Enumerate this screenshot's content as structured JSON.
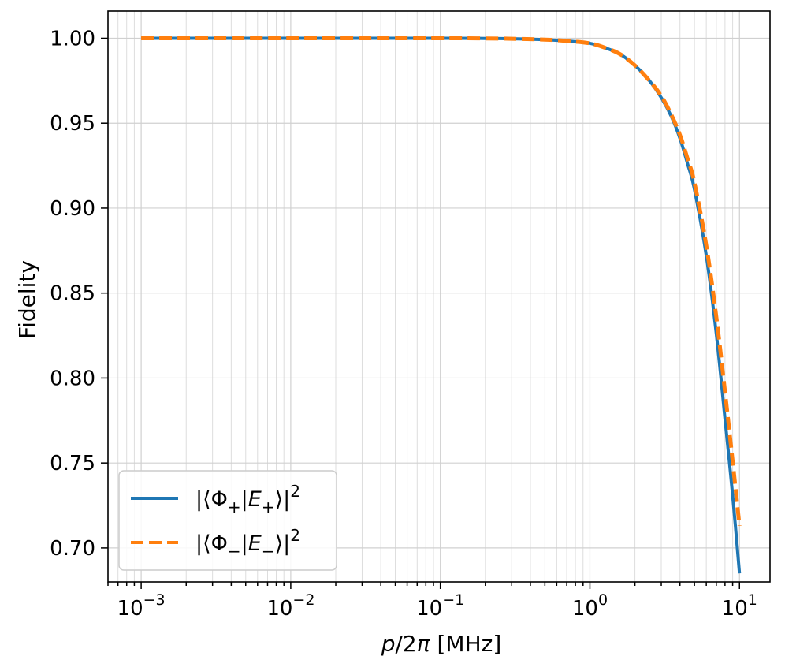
{
  "chart_data": {
    "type": "line",
    "xlabel_parts": {
      "var": "p",
      "rest": "/2",
      "pi": "π",
      "unit": " [MHz]"
    },
    "ylabel": "Fidelity",
    "xscale": "log",
    "xlim": [
      0.0006,
      16
    ],
    "ylim": [
      0.68,
      1.016
    ],
    "grid": true,
    "grid_minor_x": true,
    "legend_location": "lower-left",
    "xticks": [
      {
        "value": 0.001,
        "base": "10",
        "exp": "−3"
      },
      {
        "value": 0.01,
        "base": "10",
        "exp": "−2"
      },
      {
        "value": 0.1,
        "base": "10",
        "exp": "−1"
      },
      {
        "value": 1,
        "base": "10",
        "exp": "0"
      },
      {
        "value": 10,
        "base": "10",
        "exp": "1"
      }
    ],
    "yticks": [
      {
        "value": 1.0,
        "label": "1.00"
      },
      {
        "value": 0.95,
        "label": "0.95"
      },
      {
        "value": 0.9,
        "label": "0.90"
      },
      {
        "value": 0.85,
        "label": "0.85"
      },
      {
        "value": 0.8,
        "label": "0.80"
      },
      {
        "value": 0.75,
        "label": "0.75"
      },
      {
        "value": 0.7,
        "label": "0.70"
      }
    ],
    "series": [
      {
        "name": "|⟨Φ+|E+⟩|²",
        "label_parts": {
          "open": "|⟨Φ",
          "sub1": "+",
          "mid": "|E",
          "sub2": "+",
          "close": "⟩|",
          "sup": "2"
        },
        "color": "#1f77b4",
        "style": "solid",
        "x": [
          0.001,
          0.01,
          0.1,
          0.2,
          0.3,
          0.5,
          0.7,
          1.0,
          1.3,
          1.6,
          2.0,
          2.5,
          3.0,
          3.5,
          4.0,
          4.5,
          5.0,
          6.0,
          7.0,
          8.0,
          9.0,
          10.0
        ],
        "y": [
          1.0,
          1.0,
          1.0,
          0.9999,
          0.9997,
          0.9992,
          0.9984,
          0.997,
          0.994,
          0.9905,
          0.984,
          0.975,
          0.965,
          0.954,
          0.941,
          0.926,
          0.911,
          0.872,
          0.826,
          0.776,
          0.731,
          0.685
        ]
      },
      {
        "name": "|⟨Φ−|E−⟩|²",
        "label_parts": {
          "open": "|⟨Φ",
          "sub1": "−",
          "mid": "|E",
          "sub2": "−",
          "close": "⟩|",
          "sup": "2"
        },
        "color": "#ff7f0e",
        "style": "dashed",
        "x": [
          0.001,
          0.01,
          0.1,
          0.2,
          0.3,
          0.5,
          0.7,
          1.0,
          1.3,
          1.6,
          2.0,
          2.5,
          3.0,
          3.5,
          4.0,
          4.5,
          5.0,
          6.0,
          7.0,
          8.0,
          9.0,
          10.0
        ],
        "y": [
          1.0,
          1.0,
          1.0,
          0.9999,
          0.9997,
          0.9992,
          0.9984,
          0.997,
          0.994,
          0.9905,
          0.984,
          0.975,
          0.966,
          0.955,
          0.943,
          0.929,
          0.915,
          0.878,
          0.836,
          0.792,
          0.751,
          0.713
        ]
      }
    ]
  }
}
